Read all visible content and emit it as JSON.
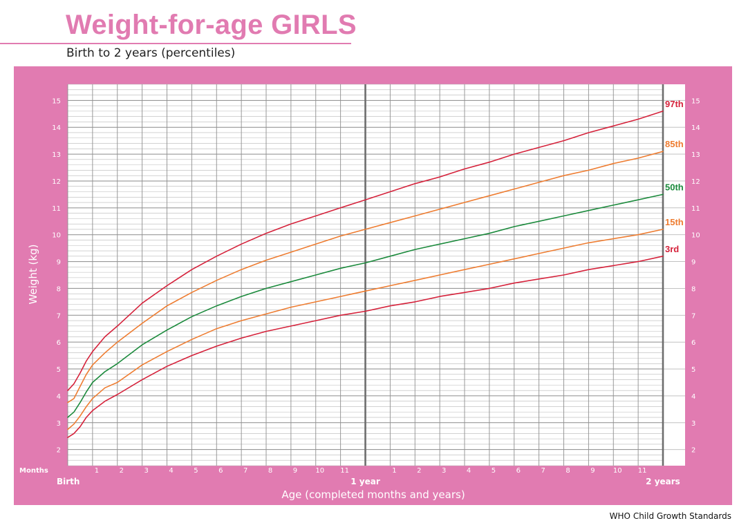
{
  "title": "Weight-for-age GIRLS",
  "subtitle": "Birth to 2 years (percentiles)",
  "source": "WHO Child Growth Standards",
  "colors": {
    "pink": "#e17bb1",
    "red": "#d5213a",
    "orange": "#ee7c30",
    "green": "#1b8a3c"
  },
  "chart_data": {
    "type": "line",
    "xlabel": "Age (completed months and years)",
    "ylabel": "Weight (kg)",
    "x_unit": "months",
    "xlim": [
      0,
      24
    ],
    "ylim": [
      1.4,
      15.6
    ],
    "y_ticks": [
      2,
      3,
      4,
      5,
      6,
      7,
      8,
      9,
      10,
      11,
      12,
      13,
      14,
      15
    ],
    "x_tick_caption": "Months",
    "x_tick_labels": [
      {
        "x": 0,
        "label": "Birth",
        "major": true
      },
      {
        "x": 1,
        "label": "1"
      },
      {
        "x": 2,
        "label": "2"
      },
      {
        "x": 3,
        "label": "3"
      },
      {
        "x": 4,
        "label": "4"
      },
      {
        "x": 5,
        "label": "5"
      },
      {
        "x": 6,
        "label": "6"
      },
      {
        "x": 7,
        "label": "7"
      },
      {
        "x": 8,
        "label": "8"
      },
      {
        "x": 9,
        "label": "9"
      },
      {
        "x": 10,
        "label": "10"
      },
      {
        "x": 11,
        "label": "11"
      },
      {
        "x": 12,
        "label": "1 year",
        "major": true
      },
      {
        "x": 13,
        "label": "1"
      },
      {
        "x": 14,
        "label": "2"
      },
      {
        "x": 15,
        "label": "3"
      },
      {
        "x": 16,
        "label": "4"
      },
      {
        "x": 17,
        "label": "5"
      },
      {
        "x": 18,
        "label": "6"
      },
      {
        "x": 19,
        "label": "7"
      },
      {
        "x": 20,
        "label": "8"
      },
      {
        "x": 21,
        "label": "9"
      },
      {
        "x": 22,
        "label": "10"
      },
      {
        "x": 23,
        "label": "11"
      },
      {
        "x": 24,
        "label": "2 years",
        "major": true
      }
    ],
    "x": [
      0,
      0.25,
      0.5,
      0.75,
      1,
      1.5,
      2,
      3,
      4,
      5,
      6,
      7,
      8,
      9,
      10,
      11,
      12,
      13,
      14,
      15,
      16,
      17,
      18,
      19,
      20,
      21,
      22,
      23,
      24
    ],
    "series": [
      {
        "name": "97th",
        "color": "#d5213a",
        "values": [
          4.2,
          4.45,
          4.85,
          5.3,
          5.65,
          6.2,
          6.6,
          7.45,
          8.1,
          8.7,
          9.2,
          9.65,
          10.05,
          10.4,
          10.7,
          11.0,
          11.3,
          11.6,
          11.9,
          12.15,
          12.45,
          12.7,
          13.0,
          13.25,
          13.5,
          13.8,
          14.05,
          14.3,
          14.6
        ]
      },
      {
        "name": "85th",
        "color": "#ee7c30",
        "values": [
          3.75,
          3.9,
          4.35,
          4.8,
          5.15,
          5.6,
          6.0,
          6.7,
          7.35,
          7.85,
          8.3,
          8.7,
          9.05,
          9.35,
          9.65,
          9.95,
          10.2,
          10.45,
          10.7,
          10.95,
          11.2,
          11.45,
          11.7,
          11.95,
          12.2,
          12.4,
          12.65,
          12.85,
          13.1
        ]
      },
      {
        "name": "50th",
        "color": "#1b8a3c",
        "values": [
          3.2,
          3.4,
          3.75,
          4.15,
          4.5,
          4.9,
          5.2,
          5.9,
          6.45,
          6.95,
          7.35,
          7.7,
          8.0,
          8.25,
          8.5,
          8.75,
          8.95,
          9.2,
          9.45,
          9.65,
          9.85,
          10.05,
          10.3,
          10.5,
          10.7,
          10.9,
          11.1,
          11.3,
          11.5
        ]
      },
      {
        "name": "15th",
        "color": "#ee7c30",
        "values": [
          2.75,
          2.95,
          3.25,
          3.6,
          3.9,
          4.3,
          4.5,
          5.15,
          5.65,
          6.1,
          6.5,
          6.8,
          7.05,
          7.3,
          7.5,
          7.7,
          7.9,
          8.1,
          8.3,
          8.5,
          8.7,
          8.9,
          9.1,
          9.3,
          9.5,
          9.7,
          9.85,
          10.0,
          10.2
        ]
      },
      {
        "name": "3rd",
        "color": "#d5213a",
        "values": [
          2.45,
          2.6,
          2.85,
          3.2,
          3.45,
          3.8,
          4.05,
          4.6,
          5.1,
          5.5,
          5.85,
          6.15,
          6.4,
          6.6,
          6.8,
          7.0,
          7.15,
          7.35,
          7.5,
          7.7,
          7.85,
          8.0,
          8.2,
          8.35,
          8.5,
          8.7,
          8.85,
          9.0,
          9.2
        ]
      }
    ]
  }
}
